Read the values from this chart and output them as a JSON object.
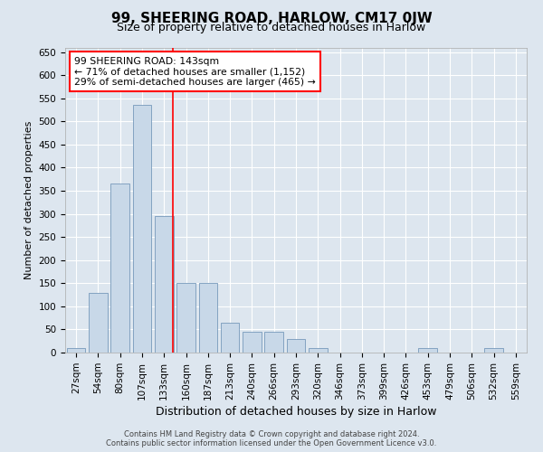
{
  "title": "99, SHEERING ROAD, HARLOW, CM17 0JW",
  "subtitle": "Size of property relative to detached houses in Harlow",
  "xlabel": "Distribution of detached houses by size in Harlow",
  "ylabel": "Number of detached properties",
  "bin_labels": [
    "27sqm",
    "54sqm",
    "80sqm",
    "107sqm",
    "133sqm",
    "160sqm",
    "187sqm",
    "213sqm",
    "240sqm",
    "266sqm",
    "293sqm",
    "320sqm",
    "346sqm",
    "373sqm",
    "399sqm",
    "426sqm",
    "453sqm",
    "479sqm",
    "506sqm",
    "532sqm",
    "559sqm"
  ],
  "bar_heights": [
    10,
    130,
    365,
    535,
    295,
    150,
    150,
    65,
    45,
    45,
    30,
    10,
    0,
    0,
    0,
    0,
    10,
    0,
    0,
    10,
    0
  ],
  "bar_color": "#c8d8e8",
  "bar_edge_color": "#7799bb",
  "property_line_x": 4.4,
  "property_line_color": "red",
  "annotation_text": "99 SHEERING ROAD: 143sqm\n← 71% of detached houses are smaller (1,152)\n29% of semi-detached houses are larger (465) →",
  "annotation_box_color": "white",
  "annotation_box_edge_color": "red",
  "ylim": [
    0,
    660
  ],
  "yticks": [
    0,
    50,
    100,
    150,
    200,
    250,
    300,
    350,
    400,
    450,
    500,
    550,
    600,
    650
  ],
  "footer_line1": "Contains HM Land Registry data © Crown copyright and database right 2024.",
  "footer_line2": "Contains public sector information licensed under the Open Government Licence v3.0.",
  "fig_bg_color": "#dde6ef",
  "plot_bg_color": "#dde6ef",
  "grid_color": "white",
  "title_fontsize": 11,
  "subtitle_fontsize": 9,
  "tick_fontsize": 7.5,
  "ylabel_fontsize": 8,
  "xlabel_fontsize": 9
}
